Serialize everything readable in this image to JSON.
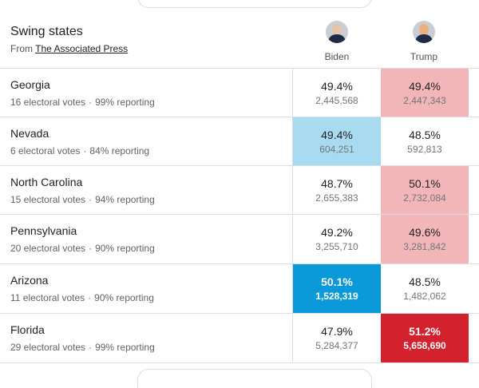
{
  "header": {
    "title": "Swing states",
    "source_prefix": "From",
    "source_link": "The Associated Press"
  },
  "candidates": {
    "biden": {
      "name": "Biden",
      "icon": "candidate-photo-biden"
    },
    "trump": {
      "name": "Trump",
      "icon": "candidate-photo-trump"
    }
  },
  "colors": {
    "biden_light": "#a8dbf0",
    "biden_strong": "#0a9ad9",
    "trump_light": "#f2b6b9",
    "trump_strong": "#d3212d"
  },
  "states": [
    {
      "name": "Georgia",
      "ev": "16 electoral votes",
      "reporting": "99% reporting",
      "biden": {
        "pct": "49.4%",
        "votes": "2,445,568"
      },
      "trump": {
        "pct": "49.4%",
        "votes": "2,447,343"
      }
    },
    {
      "name": "Nevada",
      "ev": "6 electoral votes",
      "reporting": "84% reporting",
      "biden": {
        "pct": "49.4%",
        "votes": "604,251"
      },
      "trump": {
        "pct": "48.5%",
        "votes": "592,813"
      }
    },
    {
      "name": "North Carolina",
      "ev": "15 electoral votes",
      "reporting": "94% reporting",
      "biden": {
        "pct": "48.7%",
        "votes": "2,655,383"
      },
      "trump": {
        "pct": "50.1%",
        "votes": "2,732,084"
      }
    },
    {
      "name": "Pennsylvania",
      "ev": "20 electoral votes",
      "reporting": "90% reporting",
      "biden": {
        "pct": "49.2%",
        "votes": "3,255,710"
      },
      "trump": {
        "pct": "49.6%",
        "votes": "3,281,842"
      }
    },
    {
      "name": "Arizona",
      "ev": "11 electoral votes",
      "reporting": "90% reporting",
      "biden": {
        "pct": "50.1%",
        "votes": "1,528,319"
      },
      "trump": {
        "pct": "48.5%",
        "votes": "1,482,062"
      }
    },
    {
      "name": "Florida",
      "ev": "29 electoral votes",
      "reporting": "99% reporting",
      "biden": {
        "pct": "47.9%",
        "votes": "5,284,377"
      },
      "trump": {
        "pct": "51.2%",
        "votes": "5,658,690"
      }
    }
  ]
}
